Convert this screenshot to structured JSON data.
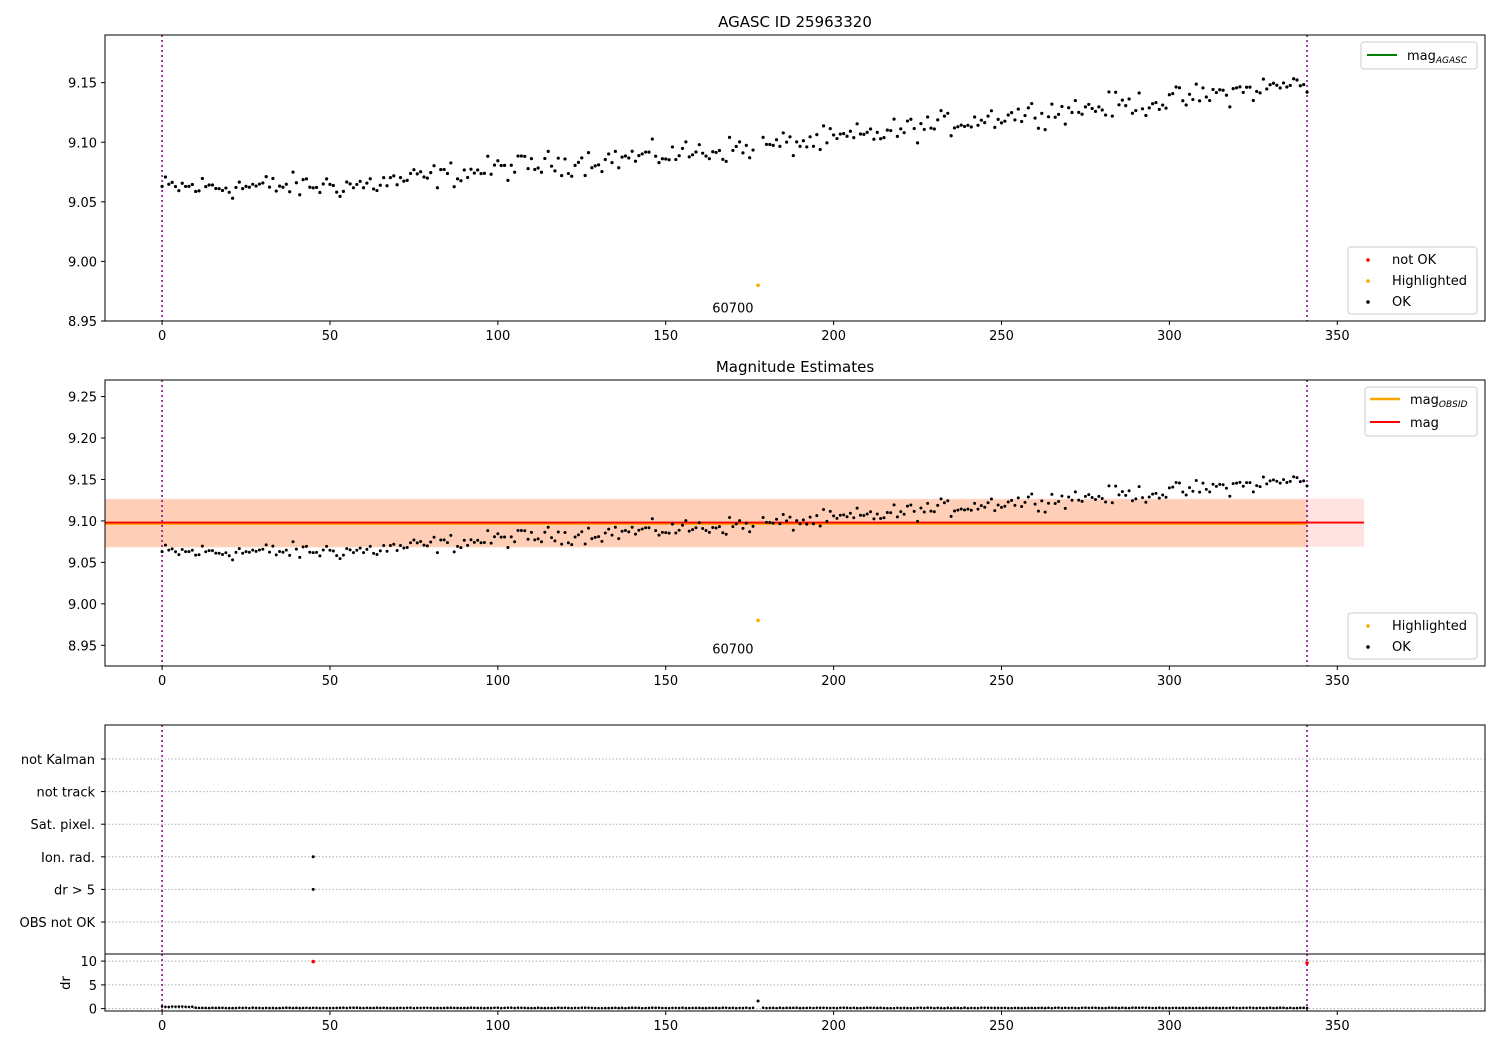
{
  "chart_data": [
    {
      "type": "scatter",
      "title": "AGASC ID 25963320",
      "xlim": [
        -17,
        394
      ],
      "ylim": [
        8.95,
        9.19
      ],
      "x_ticks": [
        0,
        50,
        100,
        150,
        200,
        250,
        300,
        350
      ],
      "y_ticks": [
        8.95,
        9.0,
        9.05,
        9.1,
        9.15
      ],
      "vlines": [
        0,
        341
      ],
      "series": [
        {
          "name": "OK",
          "color": "#000000",
          "trend": [
            [
              0,
              9.062
            ],
            [
              60,
              9.064
            ],
            [
              100,
              9.078
            ],
            [
              160,
              9.092
            ],
            [
              200,
              9.102
            ],
            [
              250,
              9.122
            ],
            [
              300,
              9.135
            ],
            [
              341,
              9.15
            ]
          ],
          "noise": 0.009
        },
        {
          "name": "Highlighted",
          "color": "#ffa500",
          "points": [
            [
              177.5,
              8.98
            ]
          ]
        },
        {
          "name": "not OK",
          "color": "#ff0000",
          "points": []
        }
      ],
      "annotations": [
        {
          "x": 170,
          "y": 8.957,
          "text": "60700"
        }
      ],
      "legend_lines": [
        {
          "label": "mag",
          "sub": "AGASC",
          "color": "#008000"
        }
      ]
    },
    {
      "type": "scatter",
      "title": "Magnitude Estimates",
      "xlim": [
        -17,
        394
      ],
      "ylim": [
        8.925,
        9.27
      ],
      "x_ticks": [
        0,
        50,
        100,
        150,
        200,
        250,
        300,
        350
      ],
      "y_ticks": [
        8.95,
        9.0,
        9.05,
        9.1,
        9.15,
        9.2,
        9.25
      ],
      "vlines": [
        0,
        341
      ],
      "mag": 9.098,
      "mag_obsid": 9.097,
      "band": [
        9.069,
        9.127
      ],
      "band_obsid": [
        9.068,
        9.126
      ],
      "mag_x_range": [
        -17,
        358
      ],
      "mag_obsid_x_range": [
        -17,
        341
      ],
      "series": [
        {
          "name": "OK",
          "color": "#000000"
        },
        {
          "name": "Highlighted",
          "color": "#ffa500",
          "points": [
            [
              177.5,
              8.98
            ]
          ]
        }
      ],
      "annotations": [
        {
          "x": 170,
          "y": 8.94,
          "text": "60700"
        }
      ],
      "legend_lines": [
        {
          "label": "mag",
          "sub": "OBSID",
          "color": "#ffa500"
        },
        {
          "label": "mag",
          "sub": "",
          "color": "#ff0000"
        }
      ]
    },
    {
      "type": "scatter",
      "xlim": [
        -17,
        394
      ],
      "categories": [
        "not Kalman",
        "not track",
        "Sat. pixel.",
        "Ion. rad.",
        "dr > 5",
        "OBS not OK"
      ],
      "flag_points": [
        {
          "x": 45,
          "category": "Ion. rad."
        },
        {
          "x": 45,
          "category": "dr > 5"
        }
      ],
      "vlines": [
        0,
        341
      ]
    },
    {
      "type": "scatter",
      "ylabel": "dr",
      "xlim": [
        -17,
        394
      ],
      "ylim": [
        -0.5,
        11.5
      ],
      "x_ticks": [
        0,
        50,
        100,
        150,
        200,
        250,
        300,
        350
      ],
      "y_ticks": [
        0,
        5,
        10
      ],
      "vlines": [
        0,
        341
      ],
      "baseline": 0.15,
      "highlight_points": [
        [
          177.5,
          1.6
        ]
      ],
      "red_points": [
        [
          45,
          9.9
        ],
        [
          341,
          9.6
        ]
      ]
    }
  ]
}
